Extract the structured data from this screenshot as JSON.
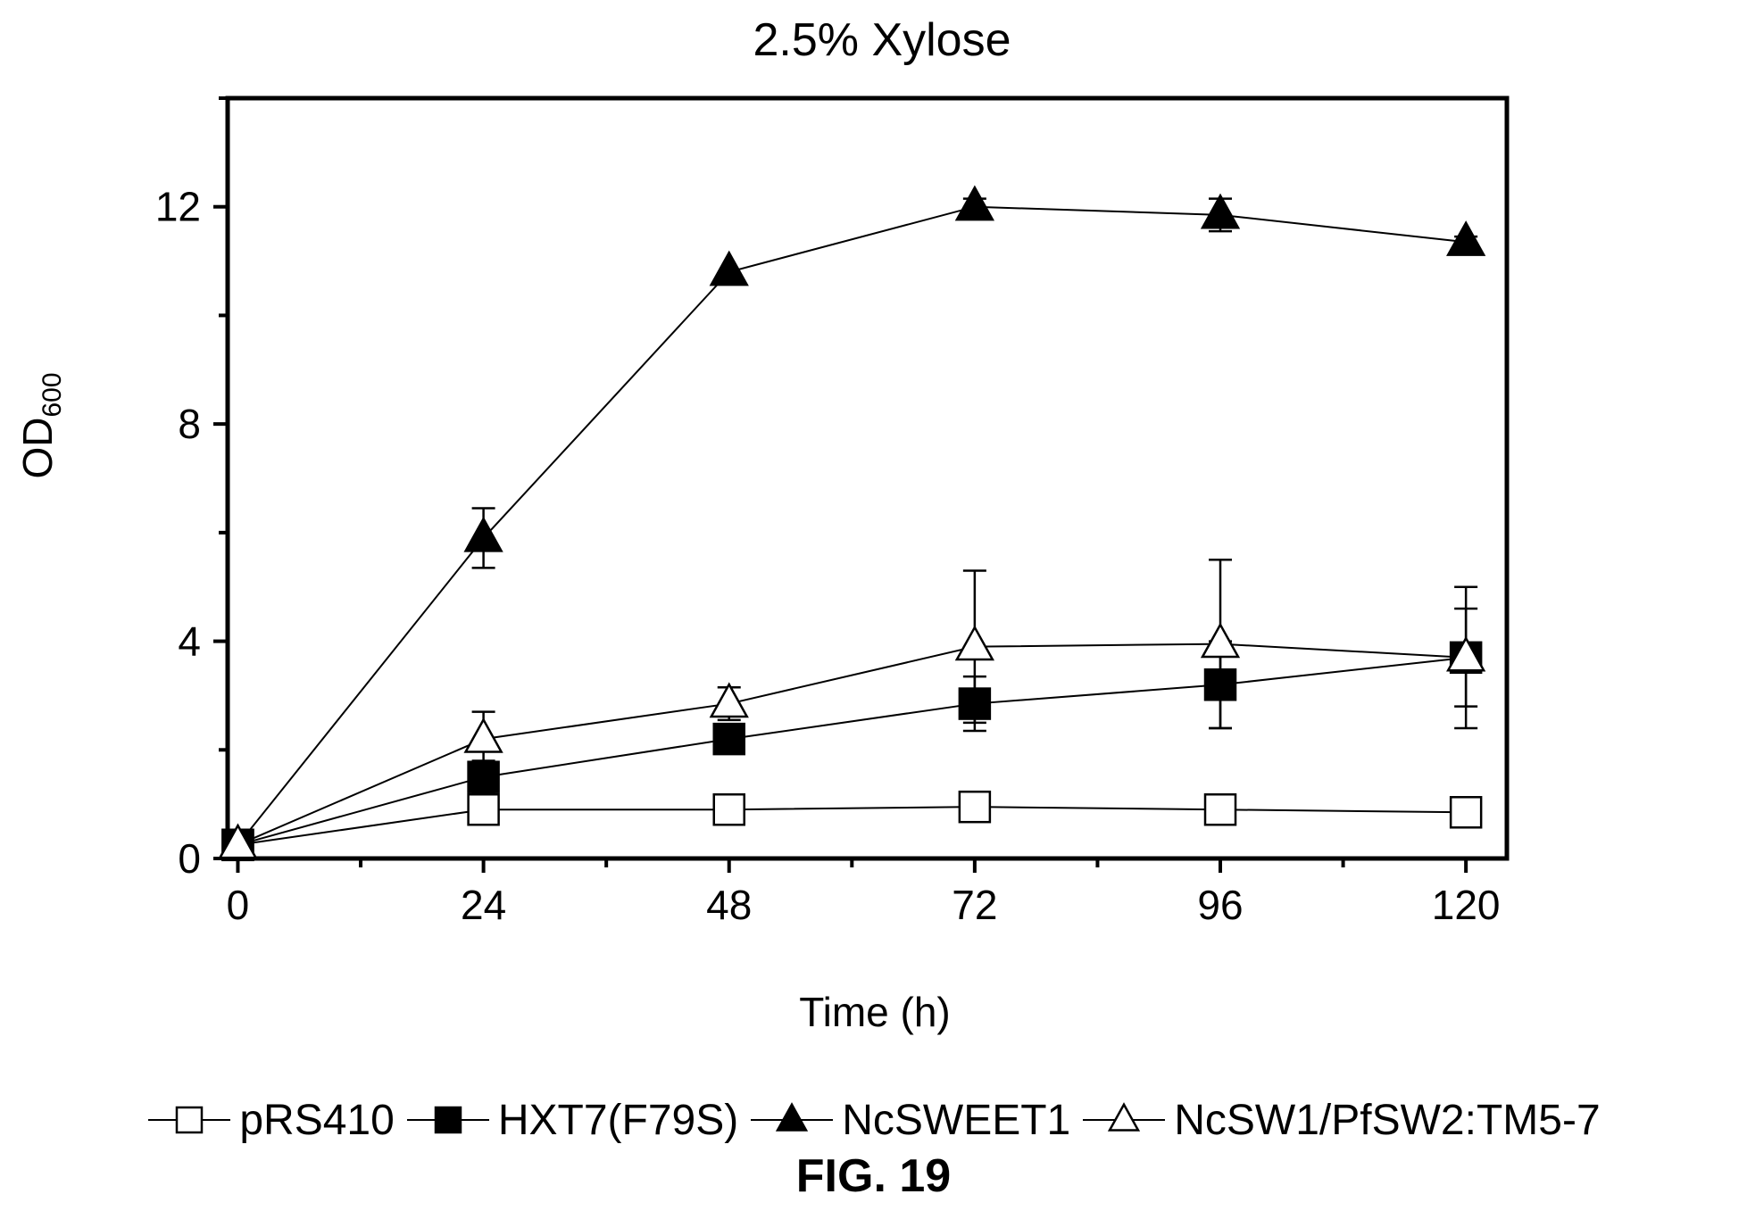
{
  "chart_data": {
    "type": "line",
    "title": "2.5% Xylose",
    "xlabel": "Time (h)",
    "ylabel": "OD",
    "ylabel_subscript": "600",
    "x": [
      0,
      24,
      48,
      72,
      96,
      120
    ],
    "xticks": [
      "0",
      "24",
      "48",
      "72",
      "96",
      "120"
    ],
    "yticks": [
      "0",
      "4",
      "8",
      "12"
    ],
    "xlim": [
      -1,
      124
    ],
    "ylim": [
      0,
      14
    ],
    "grid": false,
    "legend_position": "bottom",
    "series": [
      {
        "name": "pRS410",
        "marker": "square-open",
        "values": [
          0.25,
          0.9,
          0.9,
          0.95,
          0.9,
          0.85
        ],
        "errors": [
          0,
          0,
          0,
          0,
          0,
          0
        ]
      },
      {
        "name": "HXT7(F79S)",
        "marker": "square-filled",
        "values": [
          0.25,
          1.5,
          2.2,
          2.85,
          3.2,
          3.7
        ],
        "errors": [
          0,
          0.3,
          0.15,
          0.5,
          0.8,
          0.9
        ]
      },
      {
        "name": "NcSWEET1",
        "marker": "triangle-filled",
        "values": [
          0.25,
          5.9,
          10.8,
          12.0,
          11.85,
          11.35
        ],
        "errors": [
          0,
          0.55,
          0,
          0.15,
          0.3,
          0.1
        ]
      },
      {
        "name": "NcSW1/PfSW2:TM5-7",
        "marker": "triangle-open",
        "values": [
          0.25,
          2.2,
          2.85,
          3.9,
          3.95,
          3.7
        ],
        "errors": [
          0,
          0.5,
          0.3,
          1.4,
          1.55,
          1.3
        ]
      }
    ]
  },
  "figure_caption": "FIG. 19"
}
